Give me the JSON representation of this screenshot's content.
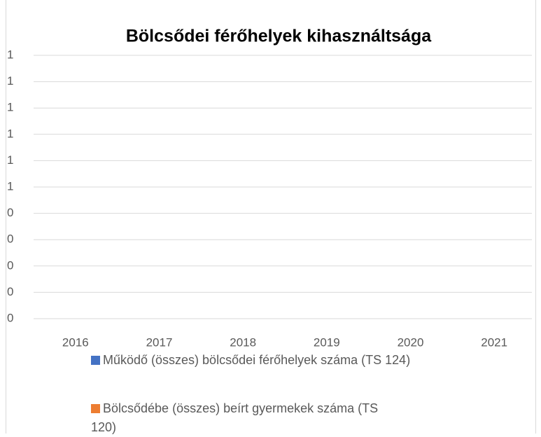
{
  "chart_data": {
    "type": "bar",
    "title": "Bölcsődei férőhelyek kihasználtsága",
    "categories": [
      "2016",
      "2017",
      "2018",
      "2019",
      "2020",
      "2021"
    ],
    "series": [
      {
        "name": "Működő (összes) bölcsődei férőhelyek száma (TS 124)",
        "color": "#4472c4",
        "values": [
          null,
          null,
          null,
          null,
          null,
          null
        ]
      },
      {
        "name": "Bölcsődébe (összes) beírt gyermekek száma (TS 120)",
        "color": "#ed7d31",
        "values": [
          null,
          null,
          null,
          null,
          null,
          null
        ]
      }
    ],
    "ylim": [
      0,
      1
    ],
    "yticks": [
      0,
      {
        "value": 0.1,
        "label": "0"
      },
      {
        "value": 0.2,
        "label": "0"
      },
      {
        "value": 0.3,
        "label": "0"
      },
      {
        "value": 0.4,
        "label": "0"
      },
      {
        "value": 0.5,
        "label": "1"
      },
      {
        "value": 0.6,
        "label": "1"
      },
      {
        "value": 0.7,
        "label": "1"
      },
      {
        "value": 0.8,
        "label": "1"
      },
      {
        "value": 0.9,
        "label": "1"
      },
      1
    ],
    "grid": true,
    "legend": "bottom"
  }
}
